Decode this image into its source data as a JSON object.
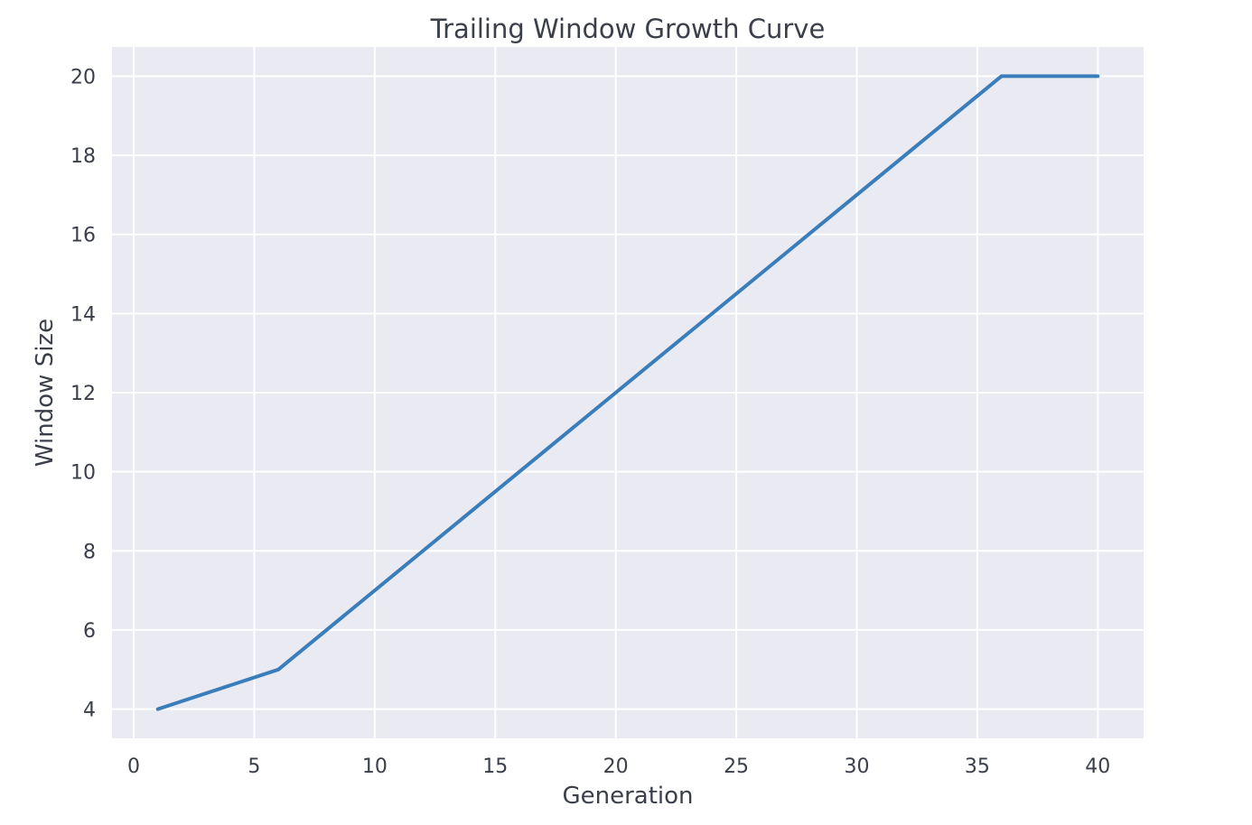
{
  "chart_data": {
    "type": "line",
    "title": "Trailing Window Growth Curve",
    "xlabel": "Generation",
    "ylabel": "Window Size",
    "xlim": [
      -0.9,
      41.9
    ],
    "ylim": [
      3.26,
      20.74
    ],
    "xticks": [
      0,
      5,
      10,
      15,
      20,
      25,
      30,
      35,
      40
    ],
    "yticks": [
      4,
      6,
      8,
      10,
      12,
      14,
      16,
      18,
      20
    ],
    "grid": true,
    "legend": "none",
    "series": [
      {
        "color": "#3a7dbb",
        "x": [
          1,
          6,
          36,
          40
        ],
        "y": [
          4,
          5,
          20,
          20
        ]
      }
    ],
    "colors": {
      "plot_background": "#eaeaf2",
      "grid": "#ffffff",
      "text": "#3a3f4a",
      "line": "#3a7dbb"
    }
  }
}
